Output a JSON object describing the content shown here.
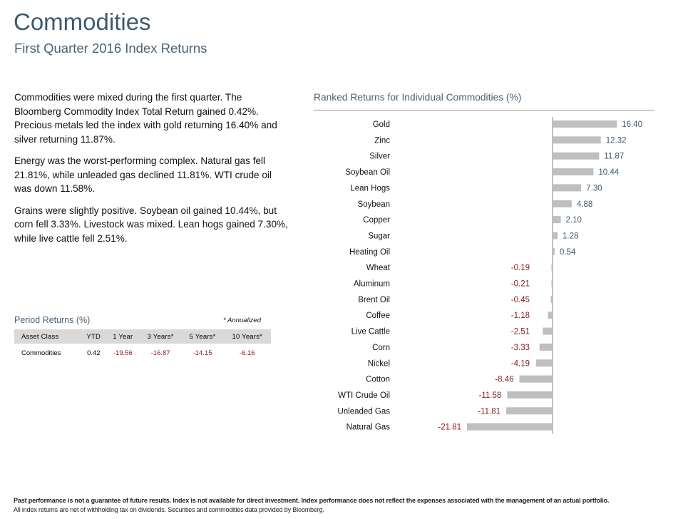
{
  "header": {
    "title": "Commodities",
    "subtitle": "First Quarter 2016 Index Returns"
  },
  "commentary": [
    "Commodities were mixed during the first quarter. The Bloomberg Commodity Index Total Return gained 0.42%. Precious metals led the index with gold returning 16.40% and silver returning 11.87%.",
    "Energy was the worst-performing complex. Natural gas fell 21.81%, while unleaded gas declined 11.81%. WTI crude oil was down 11.58%.",
    "Grains were slightly positive. Soybean oil gained 10.44%, but corn fell 3.33%. Livestock was mixed. Lean hogs gained 7.30%, while live cattle fell 2.51%."
  ],
  "period_returns": {
    "title": "Period Returns (%)",
    "note": "* Annualized",
    "columns": [
      "Asset Class",
      "YTD",
      "1 Year",
      "3 Years*",
      "5 Years*",
      "10 Years*"
    ],
    "row": [
      "Commodities",
      "0.42",
      "-19.56",
      "-16.87",
      "-14.15",
      "-6.16"
    ]
  },
  "footer": {
    "line1": "Past performance is not a guarantee of future results. Index is not available for direct investment. Index performance does not reflect the expenses associated with the management of an actual portfolio.",
    "line2": "All index returns are net of withholding tax on dividends. Securities and commodities data provided by Bloomberg."
  },
  "colors": {
    "bar": "#bfbfbf",
    "positive_label": "#3d5a70",
    "negative_label": "#8b1a1a",
    "axis": "#7f7f7f"
  },
  "chart_data": {
    "type": "bar",
    "orientation": "horizontal",
    "title": "Ranked Returns for Individual Commodities (%)",
    "categories": [
      "Gold",
      "Zinc",
      "Silver",
      "Soybean Oil",
      "Lean Hogs",
      "Soybean",
      "Copper",
      "Sugar",
      "Heating Oil",
      "Wheat",
      "Aluminum",
      "Brent Oil",
      "Coffee",
      "Live Cattle",
      "Corn",
      "Nickel",
      "Cotton",
      "WTI Crude Oil",
      "Unleaded Gas",
      "Natural Gas"
    ],
    "values": [
      16.4,
      12.32,
      11.87,
      10.44,
      7.3,
      4.88,
      2.1,
      1.28,
      0.54,
      -0.19,
      -0.21,
      -0.45,
      -1.18,
      -2.51,
      -3.33,
      -4.19,
      -8.46,
      -11.58,
      -11.81,
      -21.81
    ],
    "labels": [
      "16.40",
      "12.32",
      "11.87",
      "10.44",
      "7.30",
      "4.88",
      "2.10",
      "1.28",
      "0.54",
      "-0.19",
      "-0.21",
      "-0.45",
      "-1.18",
      "-2.51",
      "-3.33",
      "-4.19",
      "-8.46",
      "-11.58",
      "-11.81",
      "-21.81"
    ],
    "xlabel": "",
    "ylabel": "",
    "grid": false,
    "legend": "none"
  }
}
